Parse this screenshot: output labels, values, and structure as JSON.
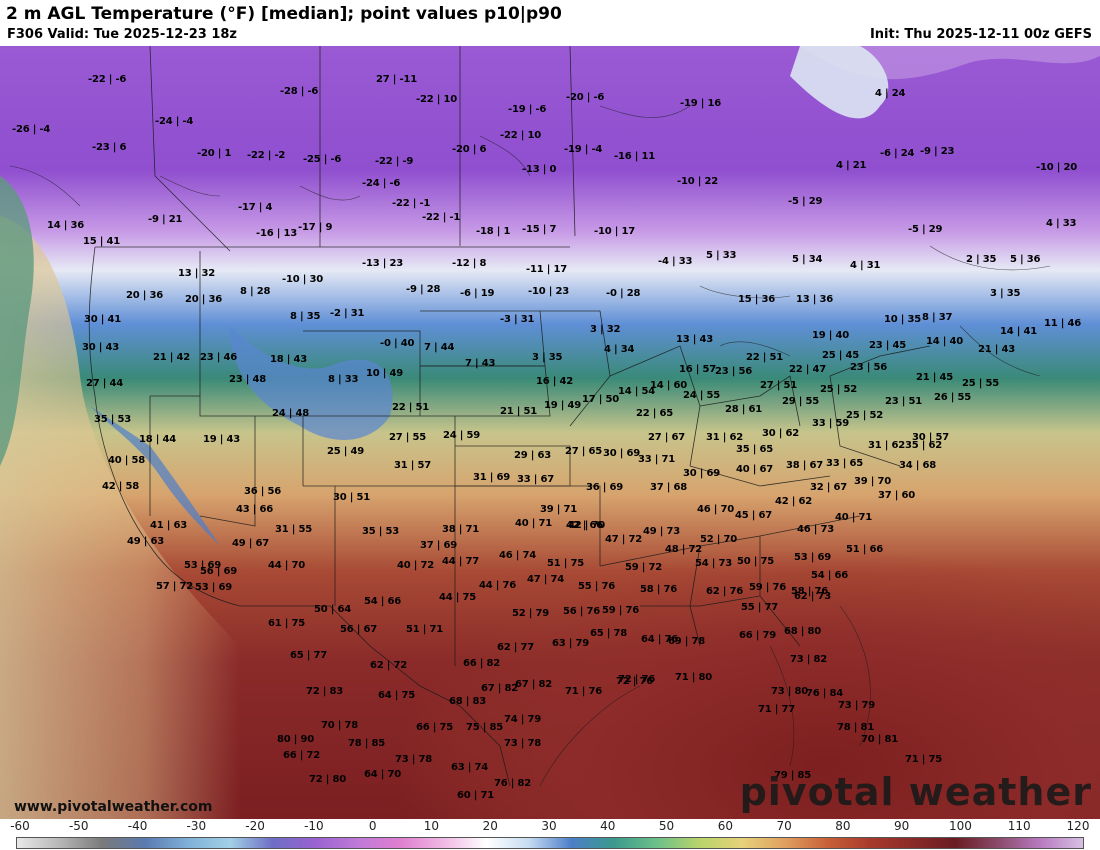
{
  "header": {
    "title": "2 m AGL Temperature (°F) [median]; point values p10|p90",
    "valid": "F306 Valid: Tue 2025-12-23 18z",
    "init": "Init: Thu 2025-12-11 00z GEFS"
  },
  "watermark": {
    "url": "www.pivotalweather.com",
    "brand": "pivotal weather"
  },
  "legend": {
    "ticks": [
      "-60",
      "-50",
      "-40",
      "-30",
      "-20",
      "-10",
      "0",
      "10",
      "20",
      "30",
      "40",
      "50",
      "60",
      "70",
      "80",
      "90",
      "100",
      "110",
      "120"
    ]
  },
  "colors": {
    "deep_cold": "#7b3fbf",
    "cold_purple": "#a66ad6",
    "freezing_white": "#e4e8f4",
    "cool_blue": "#4a72c8",
    "mild_green": "#3f8a6a",
    "warm_tan": "#e2c48a",
    "hot_red": "#8c2a2a",
    "ocean_sea_green": "#6ea98a"
  },
  "points": [
    {
      "label": "-22 | -6"
    },
    {
      "label": "27 | -11"
    },
    {
      "label": "-28 | -6"
    },
    {
      "label": "-22 | 10"
    },
    {
      "label": "-20 | -6"
    },
    {
      "label": "-26 | -4"
    },
    {
      "label": "-24 | -4"
    },
    {
      "label": "-23 | 6"
    },
    {
      "label": "-19 | -6"
    },
    {
      "label": "-19 | 16"
    },
    {
      "label": "-20 | 1"
    },
    {
      "label": "-22 | -2"
    },
    {
      "label": "-25 | -6"
    },
    {
      "label": "-22 | -9"
    },
    {
      "label": "-20 | 6"
    },
    {
      "label": "-19 | -4"
    },
    {
      "label": "-16 | 11"
    },
    {
      "label": "-13 | 0"
    },
    {
      "label": "-22 | 10"
    },
    {
      "label": "-22 | -1"
    },
    {
      "label": "-24 | -6"
    },
    {
      "label": "-10 | 22"
    },
    {
      "label": "-17 | 4"
    },
    {
      "label": "-9 | 21"
    },
    {
      "label": "-22 | -1"
    },
    {
      "label": "-5 | 29"
    },
    {
      "label": "-16 | 13"
    },
    {
      "label": "-17 | 9"
    },
    {
      "label": "-18 | 1"
    },
    {
      "label": "-15 | 7"
    },
    {
      "label": "-10 | 17"
    },
    {
      "label": "14 | 36"
    },
    {
      "label": "15 | 41"
    },
    {
      "label": "-5 | 29"
    },
    {
      "label": "4 | 33"
    },
    {
      "label": "4 | 24"
    },
    {
      "label": "-6 | 24"
    },
    {
      "label": "-9 | 23"
    },
    {
      "label": "-10 | 20"
    },
    {
      "label": "4 | 21"
    },
    {
      "label": "13 | 32"
    },
    {
      "label": "-10 | 30"
    },
    {
      "label": "-13 | 23"
    },
    {
      "label": "-12 | 8"
    },
    {
      "label": "-11 | 17"
    },
    {
      "label": "-4 | 33"
    },
    {
      "label": "5 | 33"
    },
    {
      "label": "5 | 34"
    },
    {
      "label": "4 | 31"
    },
    {
      "label": "2 | 35"
    },
    {
      "label": "5 | 36"
    },
    {
      "label": "20 | 36"
    },
    {
      "label": "20 | 36"
    },
    {
      "label": "8 | 28"
    },
    {
      "label": "-9 | 28"
    },
    {
      "label": "-6 | 19"
    },
    {
      "label": "-10 | 23"
    },
    {
      "label": "-0 | 28"
    },
    {
      "label": "15 | 36"
    },
    {
      "label": "13 | 36"
    },
    {
      "label": "3 | 35"
    },
    {
      "label": "30 | 41"
    },
    {
      "label": "8 | 35"
    },
    {
      "label": "-2 | 31"
    },
    {
      "label": "-3 | 31"
    },
    {
      "label": "3 | 32"
    },
    {
      "label": "10 | 35"
    },
    {
      "label": "8 | 37"
    },
    {
      "label": "14 | 41"
    },
    {
      "label": "11 | 46"
    },
    {
      "label": "30 | 43"
    },
    {
      "label": "21 | 42"
    },
    {
      "label": "23 | 46"
    },
    {
      "label": "18 | 43"
    },
    {
      "label": "-0 | 40"
    },
    {
      "label": "7 | 44"
    },
    {
      "label": "13 | 43"
    },
    {
      "label": "19 | 40"
    },
    {
      "label": "14 | 40"
    },
    {
      "label": "4 | 34"
    },
    {
      "label": "3 | 35"
    },
    {
      "label": "7 | 43"
    },
    {
      "label": "22 | 51"
    },
    {
      "label": "25 | 45"
    },
    {
      "label": "23 | 45"
    },
    {
      "label": "21 | 43"
    },
    {
      "label": "27 | 44"
    },
    {
      "label": "23 | 48"
    },
    {
      "label": "8 | 33"
    },
    {
      "label": "10 | 49"
    },
    {
      "label": "16 | 42"
    },
    {
      "label": "16 | 57"
    },
    {
      "label": "23 | 56"
    },
    {
      "label": "22 | 47"
    },
    {
      "label": "23 | 56"
    },
    {
      "label": "21 | 45"
    },
    {
      "label": "25 | 55"
    },
    {
      "label": "14 | 54"
    },
    {
      "label": "14 | 60"
    },
    {
      "label": "27 | 51"
    },
    {
      "label": "25 | 52"
    },
    {
      "label": "26 | 55"
    },
    {
      "label": "23 | 51"
    },
    {
      "label": "35 | 53"
    },
    {
      "label": "24 | 48"
    },
    {
      "label": "22 | 51"
    },
    {
      "label": "21 | 51"
    },
    {
      "label": "19 | 49"
    },
    {
      "label": "17 | 50"
    },
    {
      "label": "24 | 55"
    },
    {
      "label": "29 | 55"
    },
    {
      "label": "25 | 52"
    },
    {
      "label": "22 | 65"
    },
    {
      "label": "28 | 61"
    },
    {
      "label": "33 | 59"
    },
    {
      "label": "18 | 44"
    },
    {
      "label": "19 | 43"
    },
    {
      "label": "27 | 55"
    },
    {
      "label": "24 | 59"
    },
    {
      "label": "27 | 67"
    },
    {
      "label": "31 | 62"
    },
    {
      "label": "30 | 62"
    },
    {
      "label": "31 | 62"
    },
    {
      "label": "35 | 62"
    },
    {
      "label": "30 | 57"
    },
    {
      "label": "40 | 58"
    },
    {
      "label": "25 | 49"
    },
    {
      "label": "29 | 63"
    },
    {
      "label": "27 | 65"
    },
    {
      "label": "30 | 69"
    },
    {
      "label": "35 | 65"
    },
    {
      "label": "33 | 71"
    },
    {
      "label": "31 | 57"
    },
    {
      "label": "31 | 69"
    },
    {
      "label": "33 | 67"
    },
    {
      "label": "30 | 69"
    },
    {
      "label": "40 | 67"
    },
    {
      "label": "38 | 67"
    },
    {
      "label": "33 | 65"
    },
    {
      "label": "34 | 68"
    },
    {
      "label": "42 | 58"
    },
    {
      "label": "36 | 56"
    },
    {
      "label": "30 | 51"
    },
    {
      "label": "36 | 69"
    },
    {
      "label": "37 | 68"
    },
    {
      "label": "32 | 67"
    },
    {
      "label": "39 | 70"
    },
    {
      "label": "37 | 60"
    },
    {
      "label": "42 | 62"
    },
    {
      "label": "43 | 66"
    },
    {
      "label": "39 | 71"
    },
    {
      "label": "46 | 70"
    },
    {
      "label": "42 | 66"
    },
    {
      "label": "45 | 67"
    },
    {
      "label": "40 | 71"
    },
    {
      "label": "41 | 63"
    },
    {
      "label": "31 | 55"
    },
    {
      "label": "35 | 53"
    },
    {
      "label": "38 | 71"
    },
    {
      "label": "40 | 71"
    },
    {
      "label": "42 | 70"
    },
    {
      "label": "49 | 73"
    },
    {
      "label": "46 | 73"
    },
    {
      "label": "49 | 63"
    },
    {
      "label": "49 | 67"
    },
    {
      "label": "37 | 69"
    },
    {
      "label": "47 | 72"
    },
    {
      "label": "52 | 70"
    },
    {
      "label": "48 | 72"
    },
    {
      "label": "51 | 66"
    },
    {
      "label": "53 | 69"
    },
    {
      "label": "56 | 69"
    },
    {
      "label": "44 | 70"
    },
    {
      "label": "40 | 72"
    },
    {
      "label": "44 | 77"
    },
    {
      "label": "46 | 74"
    },
    {
      "label": "51 | 75"
    },
    {
      "label": "59 | 72"
    },
    {
      "label": "54 | 73"
    },
    {
      "label": "50 | 75"
    },
    {
      "label": "53 | 69"
    },
    {
      "label": "54 | 66"
    },
    {
      "label": "57 | 72"
    },
    {
      "label": "53 | 69"
    },
    {
      "label": "47 | 74"
    },
    {
      "label": "44 | 76"
    },
    {
      "label": "55 | 76"
    },
    {
      "label": "58 | 76"
    },
    {
      "label": "62 | 76"
    },
    {
      "label": "59 | 76"
    },
    {
      "label": "58 | 76"
    },
    {
      "label": "50 | 64"
    },
    {
      "label": "54 | 66"
    },
    {
      "label": "44 | 75"
    },
    {
      "label": "52 | 79"
    },
    {
      "label": "56 | 76"
    },
    {
      "label": "59 | 76"
    },
    {
      "label": "55 | 77"
    },
    {
      "label": "62 | 73"
    },
    {
      "label": "61 | 75"
    },
    {
      "label": "56 | 67"
    },
    {
      "label": "51 | 71"
    },
    {
      "label": "63 | 79"
    },
    {
      "label": "65 | 78"
    },
    {
      "label": "64 | 76"
    },
    {
      "label": "69 | 78"
    },
    {
      "label": "66 | 79"
    },
    {
      "label": "68 | 80"
    },
    {
      "label": "65 | 77"
    },
    {
      "label": "62 | 72"
    },
    {
      "label": "66 | 82"
    },
    {
      "label": "62 | 77"
    },
    {
      "label": "72 | 76"
    },
    {
      "label": "73 | 82"
    },
    {
      "label": "72 | 83"
    },
    {
      "label": "64 | 75"
    },
    {
      "label": "68 | 83"
    },
    {
      "label": "67 | 82"
    },
    {
      "label": "67 | 82"
    },
    {
      "label": "71 | 76"
    },
    {
      "label": "72 | 76"
    },
    {
      "label": "71 | 80"
    },
    {
      "label": "73 | 80"
    },
    {
      "label": "76 | 84"
    },
    {
      "label": "70 | 78"
    },
    {
      "label": "66 | 75"
    },
    {
      "label": "75 | 85"
    },
    {
      "label": "74 | 79"
    },
    {
      "label": "71 | 77"
    },
    {
      "label": "73 | 79"
    },
    {
      "label": "78 | 81"
    },
    {
      "label": "80 | 90"
    },
    {
      "label": "78 | 85"
    },
    {
      "label": "73 | 78"
    },
    {
      "label": "70 | 81"
    },
    {
      "label": "66 | 72"
    },
    {
      "label": "73 | 78"
    },
    {
      "label": "71 | 75"
    },
    {
      "label": "64 | 70"
    },
    {
      "label": "63 | 74"
    },
    {
      "label": "72 | 80"
    },
    {
      "label": "76 | 82"
    },
    {
      "label": "79 | 85"
    },
    {
      "label": "60 | 71"
    }
  ]
}
